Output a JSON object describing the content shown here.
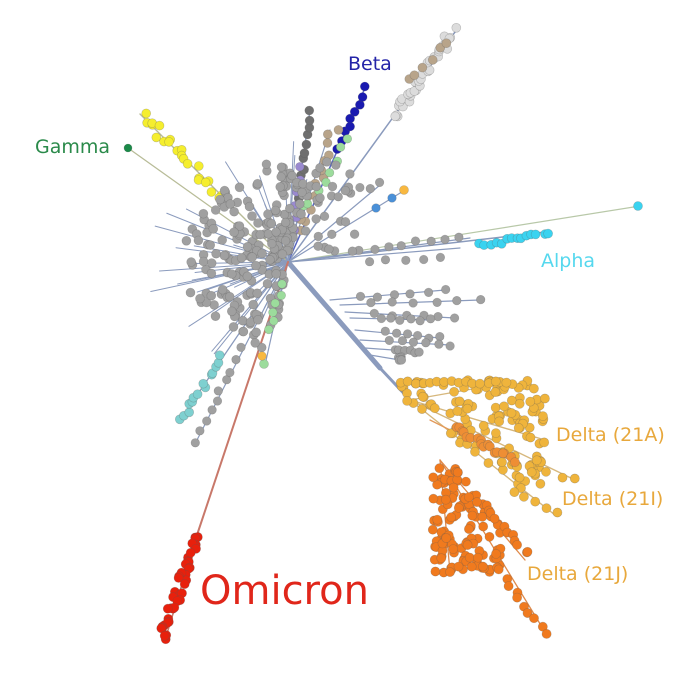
{
  "diagram": {
    "type": "unrooted-phylogenetic-tree",
    "background": "#ffffff",
    "branch_color": "#8b9bbd"
  },
  "clades": [
    {
      "id": "omicron",
      "label": "Omicron",
      "color": "#e8200c",
      "branch_color": "#c8786a",
      "label_color": "#e0261a"
    },
    {
      "id": "delta-21a",
      "label": "Delta (21A)",
      "color": "#efb43c",
      "branch_color": "#d6b77c",
      "label_color": "#e8a83c"
    },
    {
      "id": "delta-21i",
      "label": "Delta (21I)",
      "color": "#ee8e34",
      "branch_color": "#e39a5b",
      "label_color": "#e8a83c"
    },
    {
      "id": "delta-21j",
      "label": "Delta (21J)",
      "color": "#f07a1e",
      "branch_color": "#e08a4a",
      "label_color": "#e8a83c"
    },
    {
      "id": "alpha",
      "label": "Alpha",
      "color": "#3ad3f0",
      "branch_color": "#b8c8a8",
      "label_color": "#56d8ee"
    },
    {
      "id": "beta",
      "label": "Beta",
      "color": "#1a1ab0",
      "branch_color": "#5a68c0",
      "label_color": "#2424a8"
    },
    {
      "id": "gamma",
      "label": "Gamma",
      "color": "#1a8a48",
      "branch_color": "#b8bc98",
      "label_color": "#2a8a4a"
    }
  ],
  "other_lineage_colors": {
    "basal": "#a0a0a0",
    "dark-grey": "#6f6f6f",
    "yellow": "#f5ee2e",
    "light-grey": "#dcdcdc",
    "tan": "#b8a48a",
    "teal": "#7ed0d0",
    "mint": "#9cdc9c",
    "lavender": "#9a8ad0",
    "blue": "#4a90d8",
    "light-orange": "#f8b840"
  }
}
